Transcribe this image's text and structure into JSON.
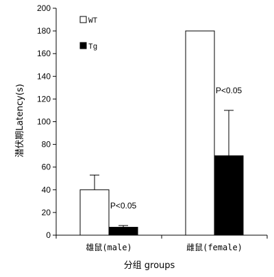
{
  "chart_data": {
    "type": "bar",
    "categories": [
      "雄鼠(male)",
      "雌鼠(female)"
    ],
    "series": [
      {
        "name": "WT",
        "values": [
          40,
          180
        ],
        "errors": [
          13,
          0
        ],
        "color": "#ffffff"
      },
      {
        "name": "Tg",
        "values": [
          7,
          70
        ],
        "errors": [
          1.5,
          40
        ],
        "color": "#000000"
      }
    ],
    "xlabel": "分组 groups",
    "ylabel": "潜伏期Latency(s)",
    "ylim": [
      0,
      200
    ],
    "yticks": [
      0,
      20,
      40,
      60,
      80,
      100,
      120,
      140,
      160,
      180,
      200
    ],
    "legend_position": "top-left",
    "grid": false,
    "annotations": [
      {
        "text": "P<0.05",
        "category_index": 0
      },
      {
        "text": "P<0.05",
        "category_index": 1
      }
    ]
  }
}
